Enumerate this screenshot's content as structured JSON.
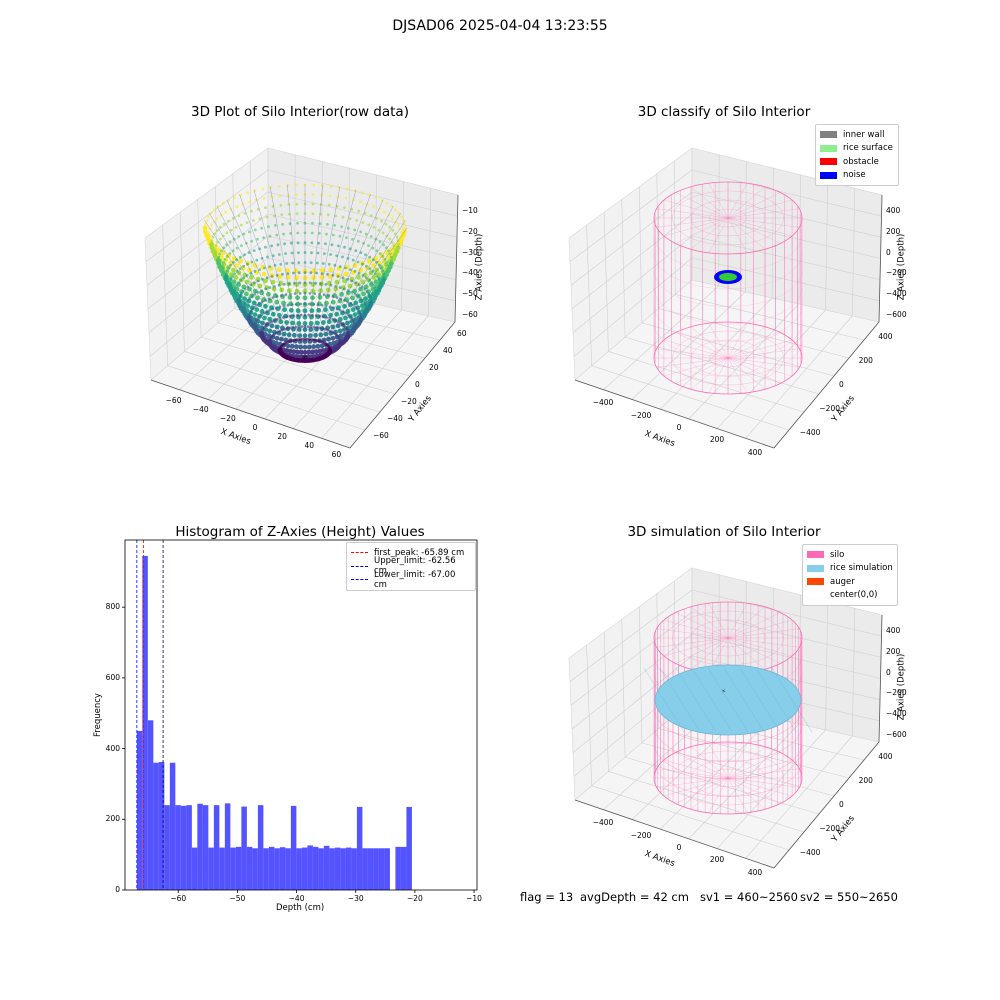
{
  "suptitle": "DJSAD06 2025-04-04 13:23:55",
  "chart_data": [
    {
      "type": "scatter",
      "subtype": "3d-surface-points",
      "title": "3D Plot of Silo Interior(row data)",
      "xlabel": "X Axies",
      "ylabel": "Y Axies",
      "zlabel": "Z Axies (Depth)",
      "xticks": [
        "−60",
        "−40",
        "−20",
        "0",
        "20",
        "40",
        "60"
      ],
      "yticks": [
        "−60",
        "−40",
        "−20",
        "0",
        "20",
        "40",
        "60"
      ],
      "zticks": [
        "−10",
        "−20",
        "−30",
        "−40",
        "−50",
        "−60"
      ],
      "xlim": [
        -70,
        70
      ],
      "ylim": [
        -70,
        70
      ],
      "zlim": [
        -67,
        -8
      ],
      "colormap": "viridis",
      "shape": "bowl"
    },
    {
      "type": "scatter",
      "subtype": "3d-classification",
      "title": "3D classify of Silo Interior",
      "xlabel": "X Axies",
      "ylabel": "Y Axies",
      "zlabel": "Z Axies (Depth)",
      "xticks": [
        "−400",
        "−200",
        "0",
        "200",
        "400"
      ],
      "yticks": [
        "−400",
        "−200",
        "0",
        "200",
        "400"
      ],
      "zticks": [
        "400",
        "200",
        "0",
        "−200",
        "−400",
        "−600"
      ],
      "legend": [
        {
          "label": "inner wall",
          "color": "#808080"
        },
        {
          "label": "rice surface",
          "color": "#90ee90"
        },
        {
          "label": "obstacle",
          "color": "#ff0000"
        },
        {
          "label": "noise",
          "color": "#0000ff"
        }
      ],
      "legend_position": "upper right",
      "wireframe_color": "#ff69b4"
    },
    {
      "type": "bar",
      "subtype": "histogram",
      "title": "Histogram of Z-Axies (Height) Values",
      "xlabel": "Depth (cm)",
      "ylabel": "Frequency",
      "xticks": [
        "−60",
        "−50",
        "−40",
        "−30",
        "−20",
        "−10"
      ],
      "yticks": [
        "0",
        "200",
        "400",
        "600",
        "800"
      ],
      "xlim": [
        -69.0,
        -9.5
      ],
      "ylim": [
        0,
        990
      ],
      "bin_start": -67.0,
      "bin_width": 0.93,
      "values": [
        450,
        945,
        480,
        360,
        362,
        240,
        360,
        240,
        238,
        240,
        120,
        244,
        240,
        120,
        240,
        120,
        245,
        120,
        122,
        236,
        122,
        118,
        240,
        118,
        122,
        118,
        121,
        118,
        238,
        118,
        120,
        126,
        122,
        118,
        125,
        118,
        120,
        118,
        120,
        118,
        235,
        118,
        118,
        118,
        118,
        118,
        0,
        122,
        122,
        235
      ],
      "bar_color": "#5353ff",
      "vlines": [
        {
          "label": "first_peak: -65.89 cm",
          "x": -65.89,
          "color": "#ff0000"
        },
        {
          "label": "Upper_limit: -62.56 cm",
          "x": -62.56,
          "color": "#000080"
        },
        {
          "label": "Lower_limit: -67.00 cm",
          "x": -67.0,
          "color": "#0000ff"
        }
      ],
      "legend_position": "upper right"
    },
    {
      "type": "scatter",
      "subtype": "3d-simulation",
      "title": "3D simulation of Silo Interior",
      "xlabel": "X Axies",
      "ylabel": "Y Axies",
      "zlabel": "Z Axies (Depth)",
      "xticks": [
        "−400",
        "−200",
        "0",
        "200",
        "400"
      ],
      "yticks": [
        "−400",
        "−200",
        "0",
        "200",
        "400"
      ],
      "zticks": [
        "400",
        "200",
        "0",
        "−200",
        "−400",
        "−600"
      ],
      "legend": [
        {
          "label": "silo",
          "color": "#ff69b4"
        },
        {
          "label": "rice simulation",
          "color": "#87ceeb"
        },
        {
          "label": "auger",
          "color": "#ff4500"
        },
        {
          "label": "center(0,0)",
          "color": ""
        }
      ],
      "legend_position": "upper right"
    }
  ],
  "status": {
    "flag": "flag = 13",
    "avg_depth": "avgDepth = 42 cm",
    "sv1": "sv1 = 460~2560",
    "sv2": "sv2 = 550~2650"
  }
}
